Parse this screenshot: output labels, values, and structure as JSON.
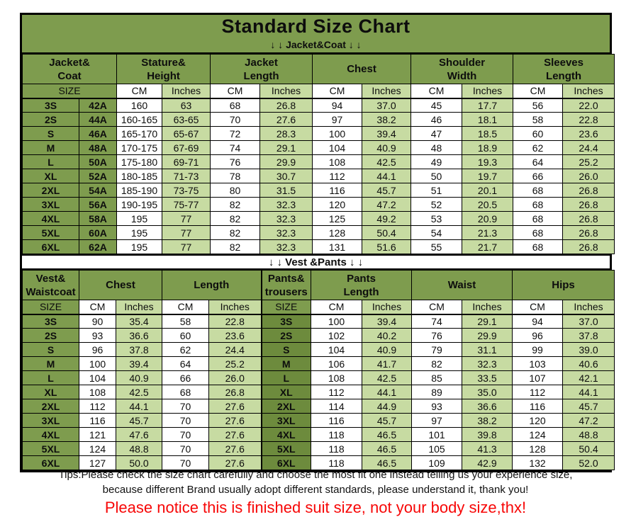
{
  "page": {
    "title": "Standard Size Chart",
    "jacket_section_label": "↓ ↓  Jacket&Coat ↓ ↓",
    "vest_section_label": "↓ ↓  Vest &Pants ↓ ↓"
  },
  "units": {
    "size": "SIZE",
    "cm": "CM",
    "inches": "Inches"
  },
  "colors": {
    "green_main": "#7e9c4e",
    "green_light": "#c7dba2",
    "green_dark": "#6d8b3d",
    "border_black": "#000000",
    "notice_red": "#f70707"
  },
  "jacket_table": {
    "groups": [
      {
        "l1": "Jacket&",
        "l2": "Coat"
      },
      {
        "l1": "Stature&",
        "l2": "Height"
      },
      {
        "l1": "Jacket",
        "l2": "Length"
      },
      {
        "l1": "Chest",
        "l2": ""
      },
      {
        "l1": "Shoulder",
        "l2": "Width"
      },
      {
        "l1": "Sleeves",
        "l2": "Length"
      }
    ],
    "rows": [
      [
        "3S",
        "42A",
        "160",
        "63",
        "68",
        "26.8",
        "94",
        "37.0",
        "45",
        "17.7",
        "56",
        "22.0"
      ],
      [
        "2S",
        "44A",
        "160-165",
        "63-65",
        "70",
        "27.6",
        "97",
        "38.2",
        "46",
        "18.1",
        "58",
        "22.8"
      ],
      [
        "S",
        "46A",
        "165-170",
        "65-67",
        "72",
        "28.3",
        "100",
        "39.4",
        "47",
        "18.5",
        "60",
        "23.6"
      ],
      [
        "M",
        "48A",
        "170-175",
        "67-69",
        "74",
        "29.1",
        "104",
        "40.9",
        "48",
        "18.9",
        "62",
        "24.4"
      ],
      [
        "L",
        "50A",
        "175-180",
        "69-71",
        "76",
        "29.9",
        "108",
        "42.5",
        "49",
        "19.3",
        "64",
        "25.2"
      ],
      [
        "XL",
        "52A",
        "180-185",
        "71-73",
        "78",
        "30.7",
        "112",
        "44.1",
        "50",
        "19.7",
        "66",
        "26.0"
      ],
      [
        "2XL",
        "54A",
        "185-190",
        "73-75",
        "80",
        "31.5",
        "116",
        "45.7",
        "51",
        "20.1",
        "68",
        "26.8"
      ],
      [
        "3XL",
        "56A",
        "190-195",
        "75-77",
        "82",
        "32.3",
        "120",
        "47.2",
        "52",
        "20.5",
        "68",
        "26.8"
      ],
      [
        "4XL",
        "58A",
        "195",
        "77",
        "82",
        "32.3",
        "125",
        "49.2",
        "53",
        "20.9",
        "68",
        "26.8"
      ],
      [
        "5XL",
        "60A",
        "195",
        "77",
        "82",
        "32.3",
        "128",
        "50.4",
        "54",
        "21.3",
        "68",
        "26.8"
      ],
      [
        "6XL",
        "62A",
        "195",
        "77",
        "82",
        "32.3",
        "131",
        "51.6",
        "55",
        "21.7",
        "68",
        "26.8"
      ]
    ]
  },
  "vest_pants_table": {
    "groups": [
      {
        "l1": "Vest&",
        "l2": "Waistcoat"
      },
      {
        "l1": "Chest",
        "l2": ""
      },
      {
        "l1": "Length",
        "l2": ""
      },
      {
        "l1": "Pants&",
        "l2": "trousers"
      },
      {
        "l1": "Pants",
        "l2": "Length"
      },
      {
        "l1": "Waist",
        "l2": ""
      },
      {
        "l1": "Hips",
        "l2": ""
      }
    ],
    "rows": [
      [
        "3S",
        "90",
        "35.4",
        "58",
        "22.8",
        "3S",
        "100",
        "39.4",
        "74",
        "29.1",
        "94",
        "37.0"
      ],
      [
        "2S",
        "93",
        "36.6",
        "60",
        "23.6",
        "2S",
        "102",
        "40.2",
        "76",
        "29.9",
        "96",
        "37.8"
      ],
      [
        "S",
        "96",
        "37.8",
        "62",
        "24.4",
        "S",
        "104",
        "40.9",
        "79",
        "31.1",
        "99",
        "39.0"
      ],
      [
        "M",
        "100",
        "39.4",
        "64",
        "25.2",
        "M",
        "106",
        "41.7",
        "82",
        "32.3",
        "103",
        "40.6"
      ],
      [
        "L",
        "104",
        "40.9",
        "66",
        "26.0",
        "L",
        "108",
        "42.5",
        "85",
        "33.5",
        "107",
        "42.1"
      ],
      [
        "XL",
        "108",
        "42.5",
        "68",
        "26.8",
        "XL",
        "112",
        "44.1",
        "89",
        "35.0",
        "112",
        "44.1"
      ],
      [
        "2XL",
        "112",
        "44.1",
        "70",
        "27.6",
        "2XL",
        "114",
        "44.9",
        "93",
        "36.6",
        "116",
        "45.7"
      ],
      [
        "3XL",
        "116",
        "45.7",
        "70",
        "27.6",
        "3XL",
        "116",
        "45.7",
        "97",
        "38.2",
        "120",
        "47.2"
      ],
      [
        "4XL",
        "121",
        "47.6",
        "70",
        "27.6",
        "4XL",
        "118",
        "46.5",
        "101",
        "39.8",
        "124",
        "48.8"
      ],
      [
        "5XL",
        "124",
        "48.8",
        "70",
        "27.6",
        "5XL",
        "118",
        "46.5",
        "105",
        "41.3",
        "128",
        "50.4"
      ],
      [
        "6XL",
        "127",
        "50.0",
        "70",
        "27.6",
        "6XL",
        "118",
        "46.5",
        "109",
        "42.9",
        "132",
        "52.0"
      ]
    ]
  },
  "footer": {
    "tips_line1": "Tips:Please check the size chart carefully and choose the most fit one instead telling us your experience size,",
    "tips_line2": "because different Brand usually adopt different standards, please understand it, thank you!",
    "notice": "Please notice this is finished suit size, not your body size,thx!"
  }
}
